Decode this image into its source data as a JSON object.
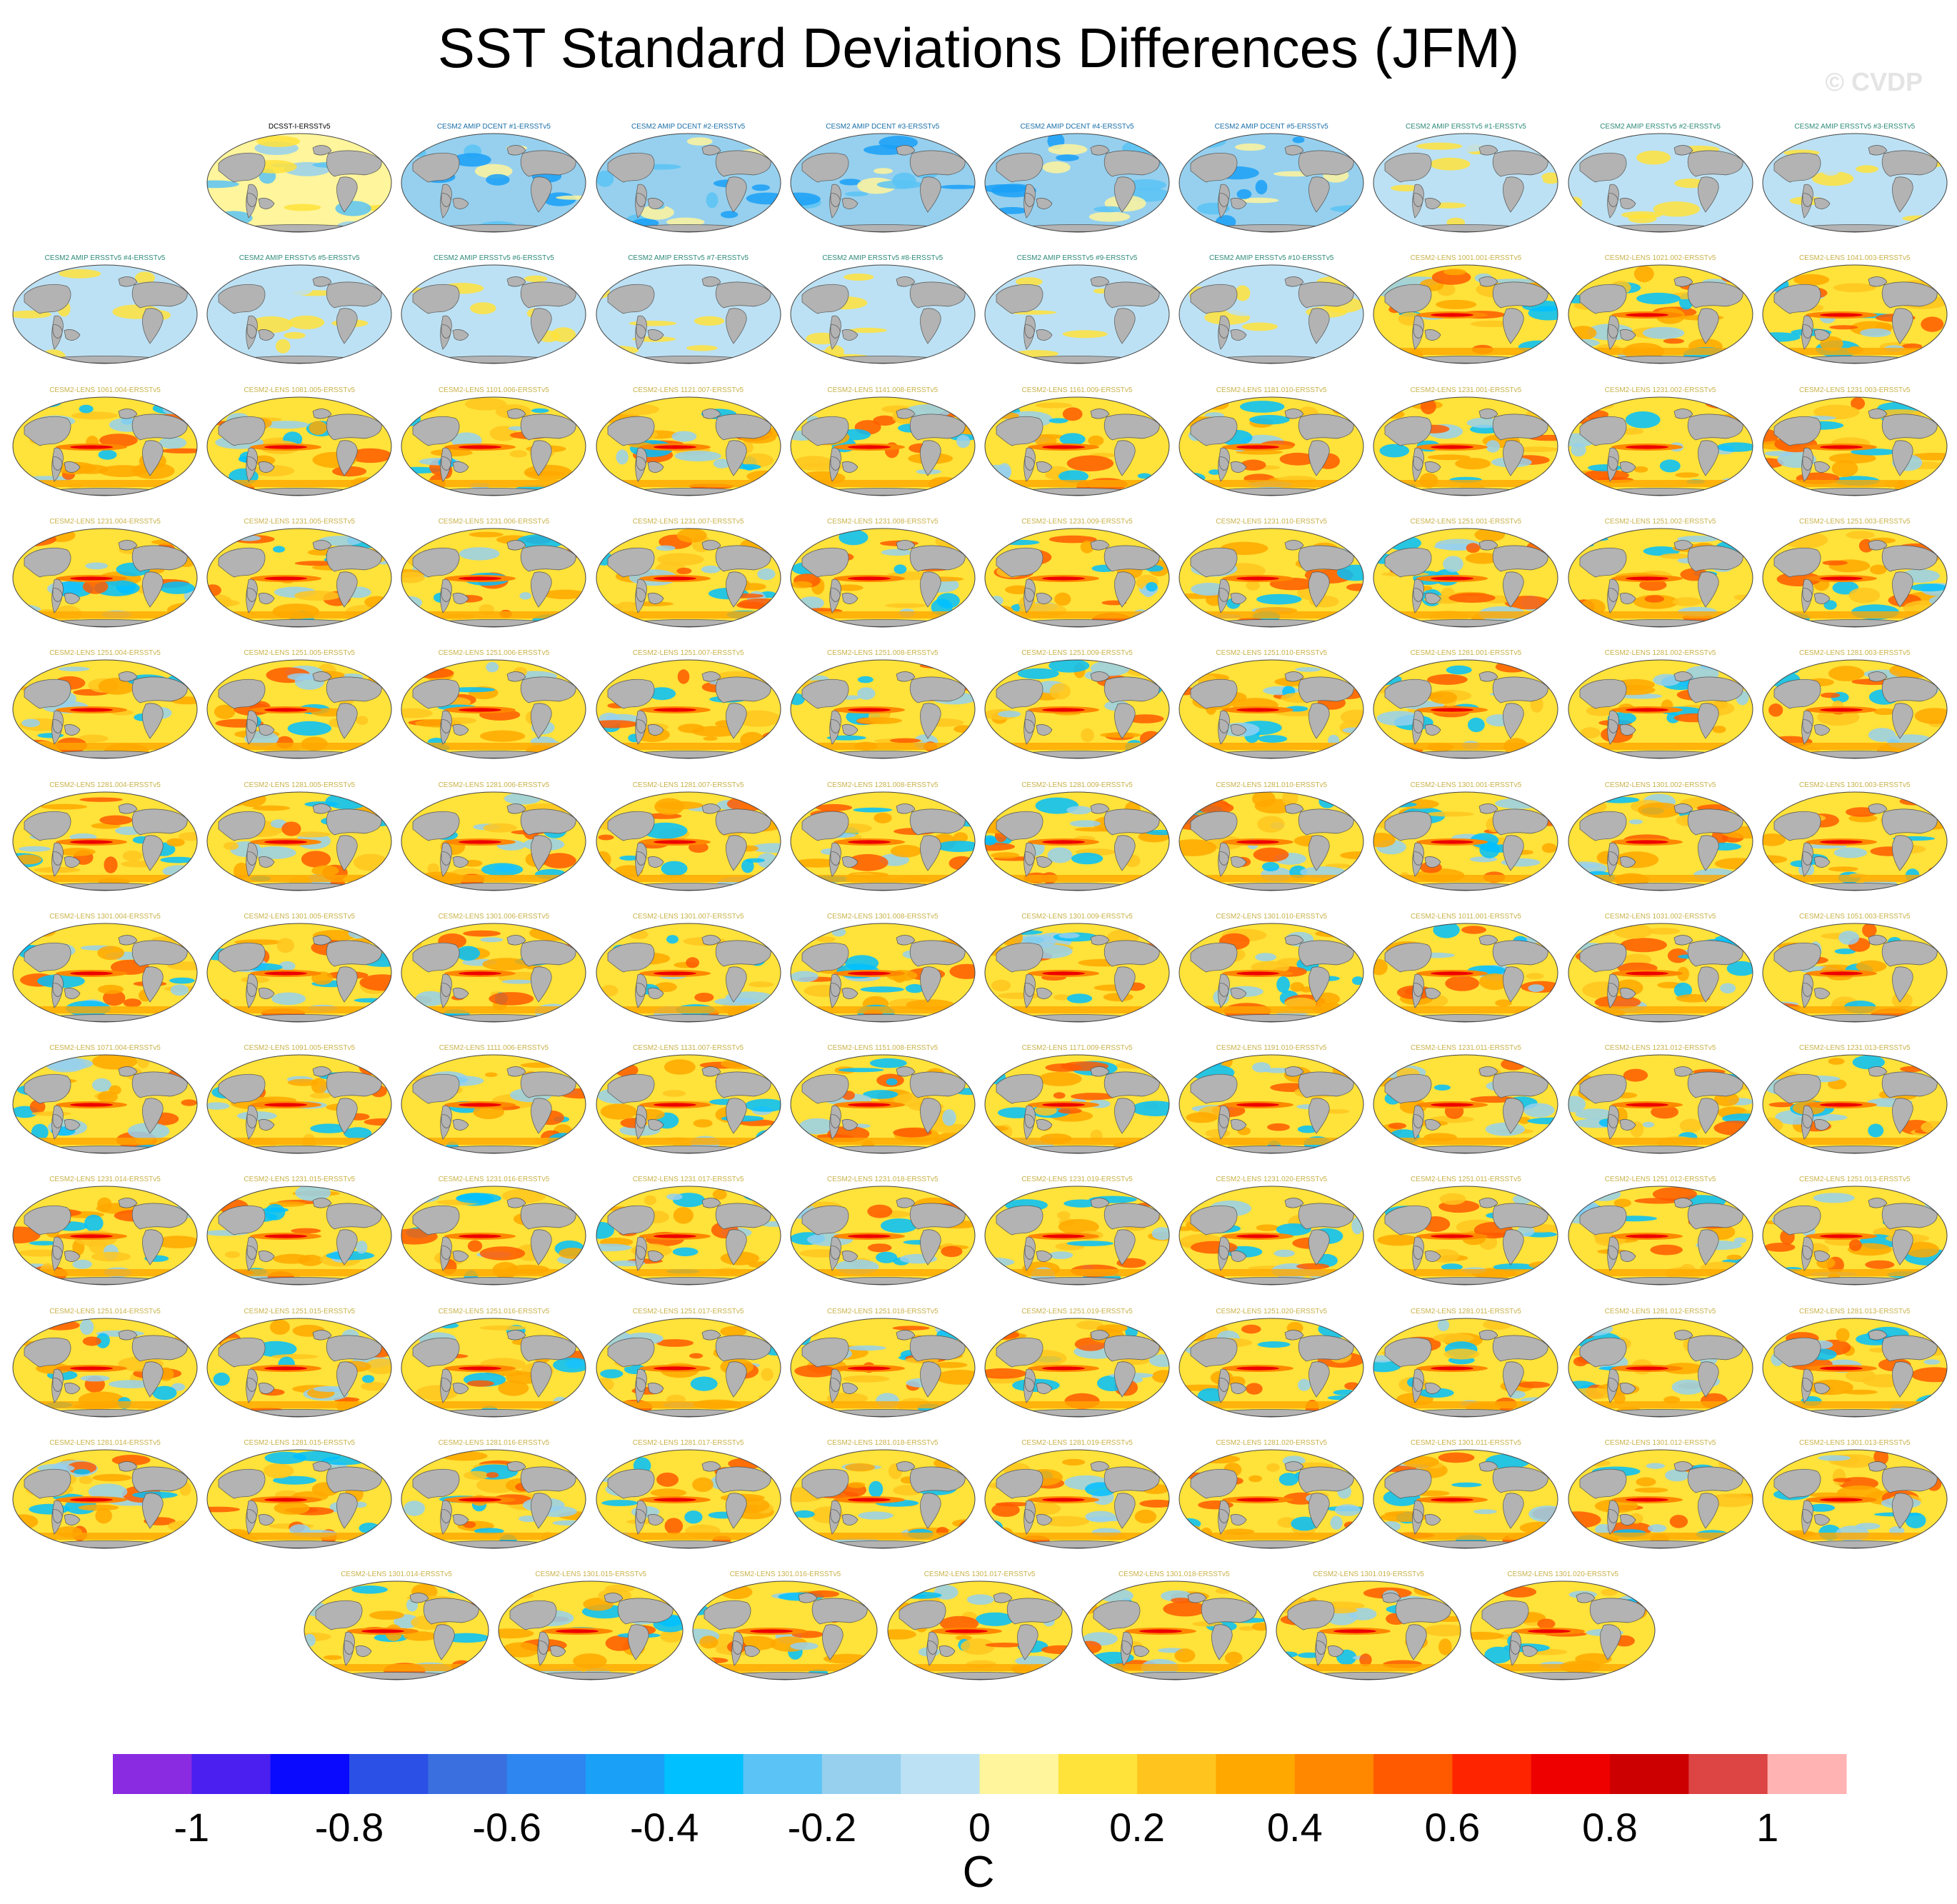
{
  "title": "SST Standard Deviations Differences (JFM)",
  "watermark": "© CVDP",
  "colors": {
    "obs_title": "#000000",
    "amip_dcent_title": "#1a6fa8",
    "amip_ersst_title": "#2e8b7a",
    "lens_title": "#c9b24a",
    "land": "#b3b3b3",
    "coast": "#555555"
  },
  "chart_data": {
    "type": "heatmap",
    "title": "SST Standard Deviations Differences (JFM)",
    "panel_projection": "Robinson global maps",
    "panel_rows": [
      {
        "panels": [
          "DCSST-I-ERSSTv5",
          "CESM2 AMIP DCENT #1-ERSSTv5",
          "CESM2 AMIP DCENT #2-ERSSTv5",
          "CESM2 AMIP DCENT #3-ERSSTv5",
          "CESM2 AMIP DCENT #4-ERSSTv5",
          "CESM2 AMIP DCENT #5-ERSSTv5",
          "CESM2 AMIP ERSSTv5 #1-ERSSTv5",
          "CESM2 AMIP ERSSTv5 #2-ERSSTv5",
          "CESM2 AMIP ERSSTv5 #3-ERSSTv5"
        ]
      },
      {
        "panels": [
          "CESM2 AMIP ERSSTv5 #4-ERSSTv5",
          "CESM2 AMIP ERSSTv5 #5-ERSSTv5",
          "CESM2 AMIP ERSSTv5 #6-ERSSTv5",
          "CESM2 AMIP ERSSTv5 #7-ERSSTv5",
          "CESM2 AMIP ERSSTv5 #8-ERSSTv5",
          "CESM2 AMIP ERSSTv5 #9-ERSSTv5",
          "CESM2 AMIP ERSSTv5 #10-ERSSTv5",
          "CESM2-LENS 1001.001-ERSSTv5",
          "CESM2-LENS 1021.002-ERSSTv5",
          "CESM2-LENS 1041.003-ERSSTv5"
        ]
      },
      {
        "panels": [
          "CESM2-LENS 1061.004-ERSSTv5",
          "CESM2-LENS 1081.005-ERSSTv5",
          "CESM2-LENS 1101.006-ERSSTv5",
          "CESM2-LENS 1121.007-ERSSTv5",
          "CESM2-LENS 1141.008-ERSSTv5",
          "CESM2-LENS 1161.009-ERSSTv5",
          "CESM2-LENS 1181.010-ERSSTv5",
          "CESM2-LENS 1231.001-ERSSTv5",
          "CESM2-LENS 1231.002-ERSSTv5",
          "CESM2-LENS 1231.003-ERSSTv5"
        ]
      },
      {
        "panels": [
          "CESM2-LENS 1231.004-ERSSTv5",
          "CESM2-LENS 1231.005-ERSSTv5",
          "CESM2-LENS 1231.006-ERSSTv5",
          "CESM2-LENS 1231.007-ERSSTv5",
          "CESM2-LENS 1231.008-ERSSTv5",
          "CESM2-LENS 1231.009-ERSSTv5",
          "CESM2-LENS 1231.010-ERSSTv5",
          "CESM2-LENS 1251.001-ERSSTv5",
          "CESM2-LENS 1251.002-ERSSTv5",
          "CESM2-LENS 1251.003-ERSSTv5"
        ]
      },
      {
        "panels": [
          "CESM2-LENS 1251.004-ERSSTv5",
          "CESM2-LENS 1251.005-ERSSTv5",
          "CESM2-LENS 1251.006-ERSSTv5",
          "CESM2-LENS 1251.007-ERSSTv5",
          "CESM2-LENS 1251.008-ERSSTv5",
          "CESM2-LENS 1251.009-ERSSTv5",
          "CESM2-LENS 1251.010-ERSSTv5",
          "CESM2-LENS 1281.001-ERSSTv5",
          "CESM2-LENS 1281.002-ERSSTv5",
          "CESM2-LENS 1281.003-ERSSTv5"
        ]
      },
      {
        "panels": [
          "CESM2-LENS 1281.004-ERSSTv5",
          "CESM2-LENS 1281.005-ERSSTv5",
          "CESM2-LENS 1281.006-ERSSTv5",
          "CESM2-LENS 1281.007-ERSSTv5",
          "CESM2-LENS 1281.008-ERSSTv5",
          "CESM2-LENS 1281.009-ERSSTv5",
          "CESM2-LENS 1281.010-ERSSTv5",
          "CESM2-LENS 1301.001-ERSSTv5",
          "CESM2-LENS 1301.002-ERSSTv5",
          "CESM2-LENS 1301.003-ERSSTv5"
        ]
      },
      {
        "panels": [
          "CESM2-LENS 1301.004-ERSSTv5",
          "CESM2-LENS 1301.005-ERSSTv5",
          "CESM2-LENS 1301.006-ERSSTv5",
          "CESM2-LENS 1301.007-ERSSTv5",
          "CESM2-LENS 1301.008-ERSSTv5",
          "CESM2-LENS 1301.009-ERSSTv5",
          "CESM2-LENS 1301.010-ERSSTv5",
          "CESM2-LENS 1011.001-ERSSTv5",
          "CESM2-LENS 1031.002-ERSSTv5",
          "CESM2-LENS 1051.003-ERSSTv5"
        ]
      },
      {
        "panels": [
          "CESM2-LENS 1071.004-ERSSTv5",
          "CESM2-LENS 1091.005-ERSSTv5",
          "CESM2-LENS 1111.006-ERSSTv5",
          "CESM2-LENS 1131.007-ERSSTv5",
          "CESM2-LENS 1151.008-ERSSTv5",
          "CESM2-LENS 1171.009-ERSSTv5",
          "CESM2-LENS 1191.010-ERSSTv5",
          "CESM2-LENS 1231.011-ERSSTv5",
          "CESM2-LENS 1231.012-ERSSTv5",
          "CESM2-LENS 1231.013-ERSSTv5"
        ]
      },
      {
        "panels": [
          "CESM2-LENS 1231.014-ERSSTv5",
          "CESM2-LENS 1231.015-ERSSTv5",
          "CESM2-LENS 1231.016-ERSSTv5",
          "CESM2-LENS 1231.017-ERSSTv5",
          "CESM2-LENS 1231.018-ERSSTv5",
          "CESM2-LENS 1231.019-ERSSTv5",
          "CESM2-LENS 1231.020-ERSSTv5",
          "CESM2-LENS 1251.011-ERSSTv5",
          "CESM2-LENS 1251.012-ERSSTv5",
          "CESM2-LENS 1251.013-ERSSTv5"
        ]
      },
      {
        "panels": [
          "CESM2-LENS 1251.014-ERSSTv5",
          "CESM2-LENS 1251.015-ERSSTv5",
          "CESM2-LENS 1251.016-ERSSTv5",
          "CESM2-LENS 1251.017-ERSSTv5",
          "CESM2-LENS 1251.018-ERSSTv5",
          "CESM2-LENS 1251.019-ERSSTv5",
          "CESM2-LENS 1251.020-ERSSTv5",
          "CESM2-LENS 1281.011-ERSSTv5",
          "CESM2-LENS 1281.012-ERSSTv5",
          "CESM2-LENS 1281.013-ERSSTv5"
        ]
      },
      {
        "panels": [
          "CESM2-LENS 1281.014-ERSSTv5",
          "CESM2-LENS 1281.015-ERSSTv5",
          "CESM2-LENS 1281.016-ERSSTv5",
          "CESM2-LENS 1281.017-ERSSTv5",
          "CESM2-LENS 1281.018-ERSSTv5",
          "CESM2-LENS 1281.019-ERSSTv5",
          "CESM2-LENS 1281.020-ERSSTv5",
          "CESM2-LENS 1301.011-ERSSTv5",
          "CESM2-LENS 1301.012-ERSSTv5",
          "CESM2-LENS 1301.013-ERSSTv5"
        ]
      },
      {
        "panels": [
          "CESM2-LENS 1301.014-ERSSTv5",
          "CESM2-LENS 1301.015-ERSSTv5",
          "CESM2-LENS 1301.016-ERSSTv5",
          "CESM2-LENS 1301.017-ERSSTv5",
          "CESM2-LENS 1301.018-ERSSTv5",
          "CESM2-LENS 1301.019-ERSSTv5",
          "CESM2-LENS 1301.020-ERSSTv5"
        ]
      }
    ],
    "colorbar": {
      "label": "C",
      "range": [
        -1.1,
        1.1
      ],
      "bin_width": 0.1,
      "colors": [
        "#8a2be2",
        "#4b1ff0",
        "#0a0aff",
        "#2b50e6",
        "#3a6fe0",
        "#2e86f0",
        "#1aa0f7",
        "#00c0ff",
        "#5bc3f5",
        "#96d0ee",
        "#bce1f4",
        "#fff59c",
        "#ffe23a",
        "#ffc51e",
        "#ffa800",
        "#ff8800",
        "#ff5a00",
        "#ff2400",
        "#ee0000",
        "#cc0000",
        "#dd4444",
        "#ffb3b3"
      ],
      "tick_values": [
        -1,
        -0.8,
        -0.6,
        -0.4,
        -0.2,
        0,
        0.2,
        0.4,
        0.6,
        0.8,
        1
      ],
      "tick_labels": [
        "-1",
        "-0.8",
        "-0.6",
        "-0.4",
        "-0.2",
        "0",
        "0.2",
        "0.4",
        "0.6",
        "0.8",
        "1"
      ]
    },
    "panel_fields": {
      "obs": {
        "background": 0.0,
        "features": [
          -0.15,
          -0.25,
          0.1
        ]
      },
      "amip_dcent": {
        "background": -0.15,
        "features": [
          -0.3,
          -0.45,
          0.05
        ]
      },
      "amip_ersst": {
        "background": -0.05,
        "features": [
          0.1,
          -0.05
        ]
      },
      "lens": {
        "background": 0.1,
        "enso_peak": 0.7,
        "features": [
          0.3,
          0.2,
          -0.2,
          -0.35,
          0.5
        ]
      }
    }
  }
}
